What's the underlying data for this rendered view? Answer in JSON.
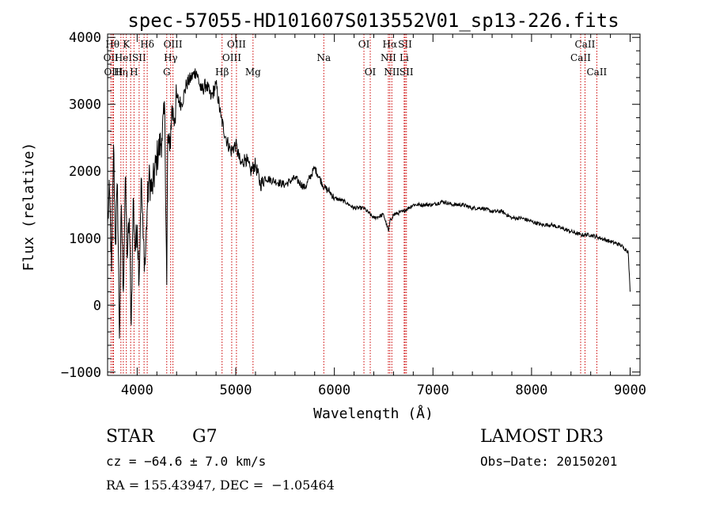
{
  "chart_data": {
    "type": "line",
    "title": "spec-57055-HD101607S013552V01_sp13-226.fits",
    "xlabel": "Wavelength (Å)",
    "ylabel": "Flux (relative)",
    "xlim": [
      3700,
      9100
    ],
    "ylim": [
      -1050,
      4050
    ],
    "xticks": [
      4000,
      5000,
      6000,
      7000,
      8000,
      9000
    ],
    "yticks": [
      -1000,
      0,
      1000,
      2000,
      3000,
      4000
    ],
    "xtick_labels": [
      "4000",
      "5000",
      "6000",
      "7000",
      "8000",
      "9000"
    ],
    "ytick_labels": [
      "−1000",
      "0",
      "1000",
      "2000",
      "3000",
      "4000"
    ],
    "line_color": "#000000",
    "marker_color": "#cc0000",
    "series": [
      {
        "name": "flux",
        "x": [
          3700,
          3720,
          3740,
          3760,
          3780,
          3800,
          3820,
          3840,
          3860,
          3880,
          3900,
          3920,
          3940,
          3960,
          3980,
          4000,
          4020,
          4040,
          4060,
          4080,
          4100,
          4120,
          4150,
          4200,
          4250,
          4280,
          4300,
          4310,
          4330,
          4350,
          4380,
          4400,
          4450,
          4500,
          4550,
          4600,
          4650,
          4700,
          4750,
          4800,
          4850,
          4900,
          4950,
          5000,
          5050,
          5100,
          5150,
          5200,
          5250,
          5300,
          5400,
          5500,
          5600,
          5700,
          5800,
          5850,
          5900,
          5950,
          6000,
          6100,
          6200,
          6300,
          6400,
          6500,
          6550,
          6563,
          6600,
          6700,
          6800,
          6900,
          7000,
          7100,
          7200,
          7300,
          7400,
          7500,
          7600,
          7700,
          7800,
          7900,
          8000,
          8100,
          8200,
          8300,
          8400,
          8500,
          8600,
          8700,
          8800,
          8900,
          8980,
          9000
        ],
        "y": [
          1200,
          1700,
          500,
          2400,
          900,
          1800,
          -500,
          1500,
          200,
          1900,
          700,
          1300,
          -300,
          1600,
          800,
          1200,
          400,
          1900,
          1000,
          600,
          1400,
          1900,
          1700,
          2200,
          2500,
          2900,
          300,
          2500,
          2300,
          2900,
          2800,
          3100,
          3000,
          3300,
          3400,
          3500,
          3200,
          3300,
          3100,
          3300,
          2800,
          2500,
          2300,
          2400,
          2100,
          2200,
          2000,
          2100,
          1800,
          1900,
          1850,
          1800,
          1900,
          1750,
          2050,
          1900,
          1750,
          1700,
          1600,
          1550,
          1450,
          1450,
          1300,
          1350,
          1100,
          1250,
          1350,
          1400,
          1500,
          1500,
          1500,
          1550,
          1500,
          1500,
          1450,
          1450,
          1400,
          1400,
          1300,
          1300,
          1250,
          1200,
          1200,
          1150,
          1100,
          1050,
          1050,
          1000,
          950,
          900,
          800,
          200
        ]
      }
    ],
    "line_markers": [
      {
        "x": 3734,
        "row": 1,
        "label": "OII"
      },
      {
        "x": 3750,
        "row": 0,
        "label": "Hθ"
      },
      {
        "x": 3760,
        "row": 2,
        "label": "OIII"
      },
      {
        "x": 3835,
        "row": 2,
        "label": "Hη"
      },
      {
        "x": 3860,
        "row": 1,
        "label": "HeI"
      },
      {
        "x": 3890,
        "row": 0,
        "label": "K"
      },
      {
        "x": 3934,
        "row": 0,
        "label": ""
      },
      {
        "x": 3968,
        "row": 2,
        "label": "H"
      },
      {
        "x": 4020,
        "row": 1,
        "label": "SII"
      },
      {
        "x": 4070,
        "row": 1,
        "label": ""
      },
      {
        "x": 4102,
        "row": 0,
        "label": "Hδ"
      },
      {
        "x": 4300,
        "row": 2,
        "label": "G"
      },
      {
        "x": 4340,
        "row": 1,
        "label": "Hγ"
      },
      {
        "x": 4363,
        "row": 0,
        "label": "OIII"
      },
      {
        "x": 4861,
        "row": 2,
        "label": "Hβ"
      },
      {
        "x": 4959,
        "row": 1,
        "label": "OIII"
      },
      {
        "x": 5007,
        "row": 0,
        "label": "OIII"
      },
      {
        "x": 5175,
        "row": 2,
        "label": "Mg"
      },
      {
        "x": 5893,
        "row": 1,
        "label": "Na"
      },
      {
        "x": 6300,
        "row": 0,
        "label": "OI"
      },
      {
        "x": 6364,
        "row": 2,
        "label": "OI"
      },
      {
        "x": 6548,
        "row": 1,
        "label": "NII"
      },
      {
        "x": 6563,
        "row": 0,
        "label": "Hα"
      },
      {
        "x": 6583,
        "row": 2,
        "label": "NII"
      },
      {
        "x": 6708,
        "row": 1,
        "label": "Li"
      },
      {
        "x": 6717,
        "row": 0,
        "label": "SII"
      },
      {
        "x": 6731,
        "row": 2,
        "label": "SII"
      },
      {
        "x": 8498,
        "row": 1,
        "label": "CaII"
      },
      {
        "x": 8542,
        "row": 0,
        "label": "CaII"
      },
      {
        "x": 8662,
        "row": 2,
        "label": "CaII"
      }
    ]
  },
  "info": {
    "class": "STAR",
    "subclass": "G7",
    "survey": "LAMOST DR3",
    "cz": "cz = −64.6 ± 7.0 km/s",
    "obs_date": "Obs−Date: 20150201",
    "radec": "RA = 155.43947, DEC =  −1.05464"
  }
}
